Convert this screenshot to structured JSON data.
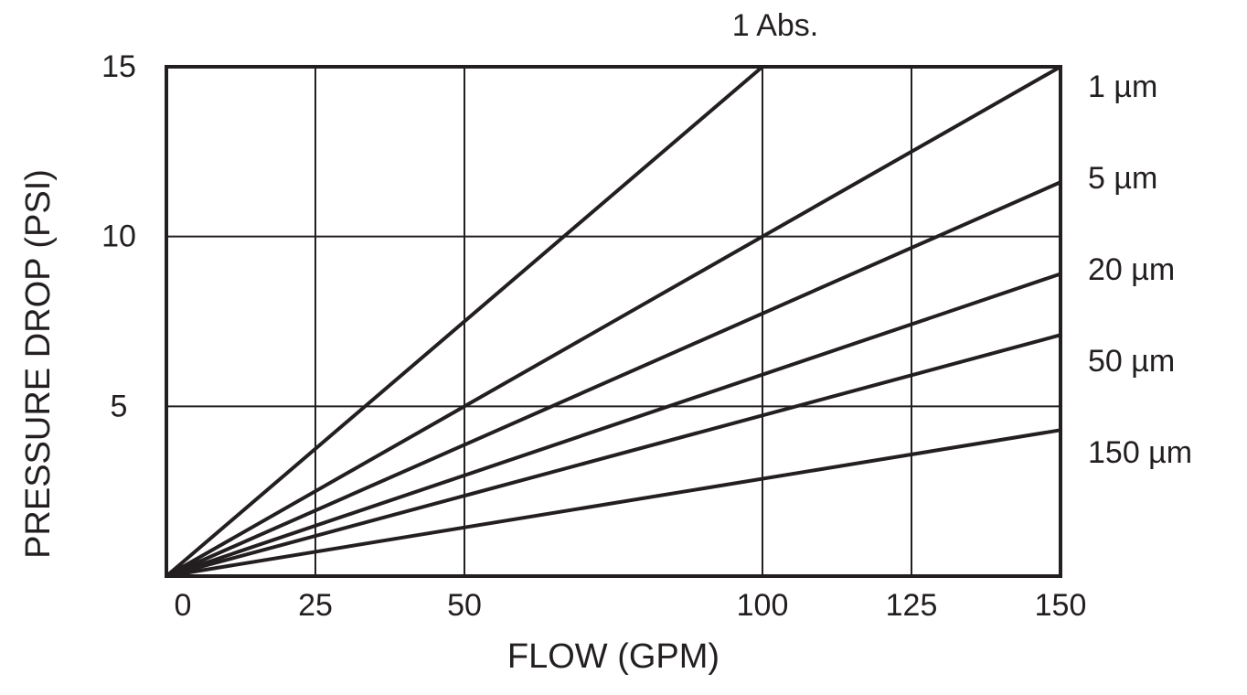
{
  "chart_data": {
    "type": "line",
    "x_label": "FLOW (GPM)",
    "y_label": "PRESSURE DROP (PSI)",
    "color": "#231f20",
    "xlim": [
      0,
      150
    ],
    "ylim": [
      0,
      15
    ],
    "xticks": [
      0,
      25,
      50,
      100,
      125,
      150
    ],
    "yticks": [
      5,
      10,
      15
    ],
    "grid": true,
    "series": [
      {
        "name": "1 Abs.",
        "x": [
          0,
          100
        ],
        "values": [
          0,
          15
        ]
      },
      {
        "name": "1 µm",
        "x": [
          0,
          150
        ],
        "values": [
          0,
          15
        ]
      },
      {
        "name": "5 µm",
        "x": [
          0,
          150
        ],
        "values": [
          0,
          11.6
        ]
      },
      {
        "name": "20 µm",
        "x": [
          0,
          150
        ],
        "values": [
          0,
          8.9
        ]
      },
      {
        "name": "50 µm",
        "x": [
          0,
          150
        ],
        "values": [
          0,
          7.1
        ]
      },
      {
        "name": "150 µm",
        "x": [
          0,
          150
        ],
        "values": [
          0,
          4.3
        ]
      }
    ]
  }
}
